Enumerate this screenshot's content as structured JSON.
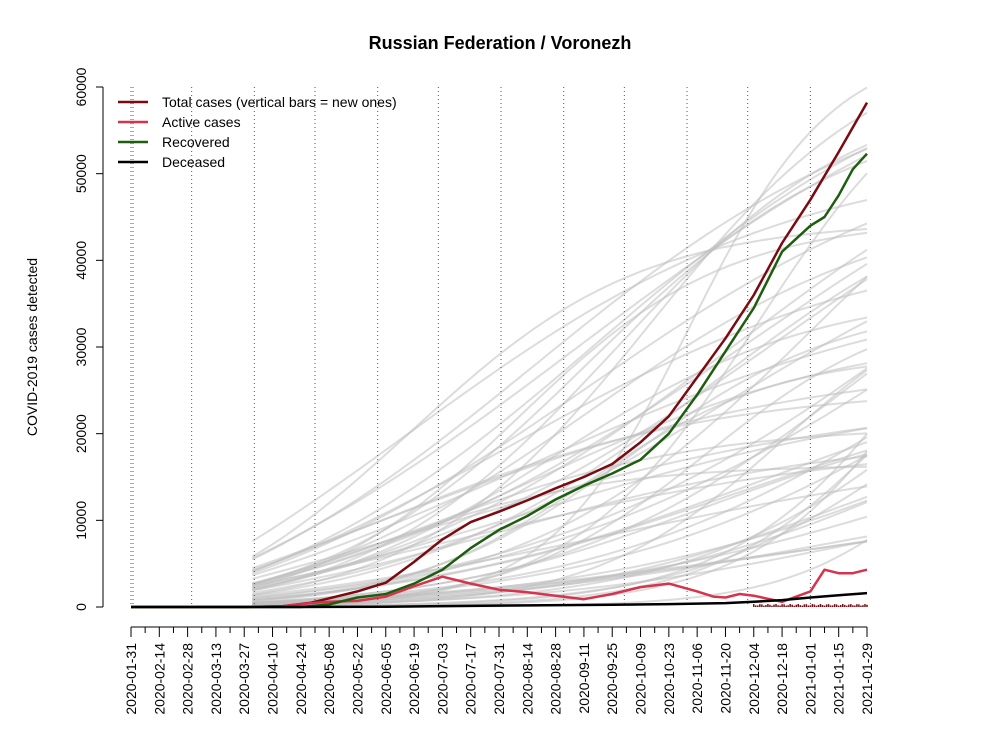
{
  "chart_data": {
    "type": "line",
    "title": "Russian Federation / Voronezh",
    "ylabel": "COVID-2019 cases detected",
    "xlabel": "",
    "ylim": [
      0,
      60000
    ],
    "y_ticks": [
      0,
      10000,
      20000,
      30000,
      40000,
      50000,
      60000
    ],
    "x_tick_labels": [
      "2020-01-31",
      "2020-02-14",
      "2020-02-28",
      "2020-03-13",
      "2020-03-27",
      "2020-04-10",
      "2020-04-24",
      "2020-05-08",
      "2020-05-22",
      "2020-06-05",
      "2020-06-19",
      "2020-07-03",
      "2020-07-17",
      "2020-07-31",
      "2020-08-14",
      "2020-08-28",
      "2020-09-11",
      "2020-09-25",
      "2020-10-09",
      "2020-10-23",
      "2020-11-06",
      "2020-11-20",
      "2020-12-04",
      "2020-12-18",
      "2021-01-01",
      "2021-01-15",
      "2021-01-29"
    ],
    "x_range": [
      "2020-01-31",
      "2021-01-29"
    ],
    "grid": "dotted vertical lines at month starts",
    "legend": {
      "position": "top-left",
      "entries": [
        {
          "label": "Total cases (vertical bars = new ones)",
          "color": "#7a0a10"
        },
        {
          "label": "Active cases",
          "color": "#d6334d"
        },
        {
          "label": "Recovered",
          "color": "#1d5e0e"
        },
        {
          "label": "Deceased",
          "color": "#000000"
        }
      ]
    },
    "series": [
      {
        "name": "Total cases (vertical bars = new ones)",
        "color": "#7a0a10",
        "points": [
          [
            "2020-01-31",
            0
          ],
          [
            "2020-03-27",
            0
          ],
          [
            "2020-04-15",
            80
          ],
          [
            "2020-04-29",
            500
          ],
          [
            "2020-05-08",
            1000
          ],
          [
            "2020-05-22",
            1800
          ],
          [
            "2020-06-05",
            2800
          ],
          [
            "2020-06-19",
            5200
          ],
          [
            "2020-07-03",
            7800
          ],
          [
            "2020-07-17",
            9800
          ],
          [
            "2020-07-31",
            11000
          ],
          [
            "2020-08-14",
            12300
          ],
          [
            "2020-08-28",
            13700
          ],
          [
            "2020-09-11",
            15000
          ],
          [
            "2020-09-25",
            16500
          ],
          [
            "2020-10-09",
            19000
          ],
          [
            "2020-10-23",
            22000
          ],
          [
            "2020-11-06",
            26500
          ],
          [
            "2020-11-20",
            31000
          ],
          [
            "2020-12-04",
            36000
          ],
          [
            "2020-12-18",
            42000
          ],
          [
            "2021-01-01",
            47000
          ],
          [
            "2021-01-15",
            52500
          ],
          [
            "2021-01-29",
            58200
          ]
        ]
      },
      {
        "name": "Active cases",
        "color": "#d6334d",
        "points": [
          [
            "2020-01-31",
            0
          ],
          [
            "2020-03-27",
            0
          ],
          [
            "2020-04-15",
            80
          ],
          [
            "2020-04-29",
            450
          ],
          [
            "2020-05-08",
            600
          ],
          [
            "2020-05-22",
            700
          ],
          [
            "2020-06-05",
            1200
          ],
          [
            "2020-06-19",
            2400
          ],
          [
            "2020-07-03",
            3500
          ],
          [
            "2020-07-17",
            2700
          ],
          [
            "2020-07-31",
            2000
          ],
          [
            "2020-08-14",
            1700
          ],
          [
            "2020-08-28",
            1300
          ],
          [
            "2020-09-11",
            900
          ],
          [
            "2020-09-25",
            1500
          ],
          [
            "2020-10-09",
            2300
          ],
          [
            "2020-10-23",
            2700
          ],
          [
            "2020-11-06",
            1800
          ],
          [
            "2020-11-14",
            1200
          ],
          [
            "2020-11-20",
            1100
          ],
          [
            "2020-11-27",
            1500
          ],
          [
            "2020-12-04",
            1300
          ],
          [
            "2020-12-18",
            600
          ],
          [
            "2021-01-01",
            1800
          ],
          [
            "2021-01-08",
            4300
          ],
          [
            "2021-01-15",
            3900
          ],
          [
            "2021-01-22",
            3900
          ],
          [
            "2021-01-29",
            4300
          ]
        ]
      },
      {
        "name": "Recovered",
        "color": "#1d5e0e",
        "points": [
          [
            "2020-01-31",
            0
          ],
          [
            "2020-04-24",
            0
          ],
          [
            "2020-05-08",
            300
          ],
          [
            "2020-05-22",
            1100
          ],
          [
            "2020-06-05",
            1500
          ],
          [
            "2020-06-19",
            2700
          ],
          [
            "2020-07-03",
            4300
          ],
          [
            "2020-07-17",
            6800
          ],
          [
            "2020-07-31",
            8900
          ],
          [
            "2020-08-14",
            10500
          ],
          [
            "2020-08-28",
            12400
          ],
          [
            "2020-09-11",
            14000
          ],
          [
            "2020-09-25",
            15400
          ],
          [
            "2020-10-09",
            17000
          ],
          [
            "2020-10-23",
            20000
          ],
          [
            "2020-11-06",
            24500
          ],
          [
            "2020-11-20",
            29500
          ],
          [
            "2020-12-04",
            34500
          ],
          [
            "2020-12-18",
            41000
          ],
          [
            "2021-01-01",
            44000
          ],
          [
            "2021-01-08",
            45000
          ],
          [
            "2021-01-15",
            47500
          ],
          [
            "2021-01-22",
            50500
          ],
          [
            "2021-01-29",
            52300
          ]
        ]
      },
      {
        "name": "Deceased",
        "color": "#000000",
        "points": [
          [
            "2020-01-31",
            0
          ],
          [
            "2020-04-24",
            0
          ],
          [
            "2020-05-08",
            10
          ],
          [
            "2020-06-05",
            40
          ],
          [
            "2020-07-03",
            100
          ],
          [
            "2020-08-14",
            180
          ],
          [
            "2020-09-25",
            260
          ],
          [
            "2020-10-23",
            330
          ],
          [
            "2020-11-20",
            450
          ],
          [
            "2020-12-04",
            600
          ],
          [
            "2020-12-18",
            800
          ],
          [
            "2021-01-01",
            1100
          ],
          [
            "2021-01-15",
            1350
          ],
          [
            "2021-01-29",
            1600
          ]
        ]
      }
    ],
    "new_cases_bars": {
      "color": "#7a0a10",
      "range": [
        "2020-12-04",
        "2021-01-29"
      ],
      "approx_daily": [
        150,
        350
      ]
    },
    "background_series_color": "#bfbfbf"
  }
}
